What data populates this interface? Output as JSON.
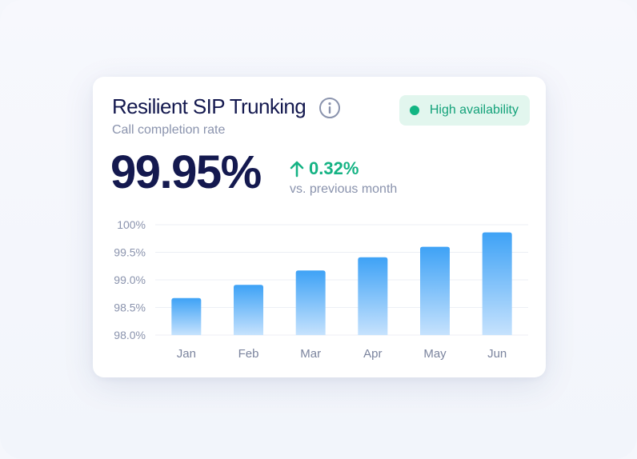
{
  "card": {
    "title": "Resilient SIP Trunking",
    "subtitle": "Call completion rate",
    "badge": "High availability",
    "value": "99.95%",
    "delta": "0.32%",
    "comparison": "vs. previous month",
    "colors": {
      "accent": "#15b384",
      "title": "#14194f",
      "bar_top": "#3ea2f6",
      "bar_bottom": "#c6e2fd"
    },
    "icons": {
      "info": "info-icon",
      "delta": "arrow-up-icon",
      "badge": "status-dot-icon"
    }
  },
  "chart_data": {
    "type": "bar",
    "categories": [
      "Jan",
      "Feb",
      "Mar",
      "Apr",
      "May",
      "Jun"
    ],
    "values": [
      98.67,
      98.91,
      99.17,
      99.41,
      99.6,
      99.86
    ],
    "y_ticks": [
      98.0,
      98.5,
      99.0,
      99.5,
      100.0
    ],
    "y_tick_labels": [
      "98.0%",
      "98.5%",
      "99.0%",
      "99.5%",
      "100%"
    ],
    "ylim": [
      98.0,
      100.0
    ],
    "grid": true,
    "legend": "none"
  }
}
